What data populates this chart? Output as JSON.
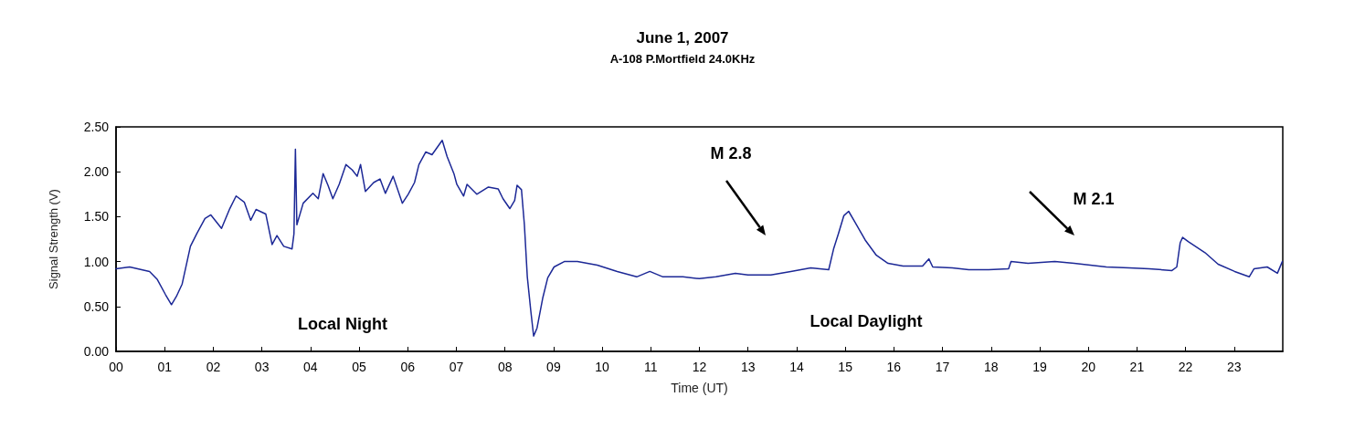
{
  "chart_data": {
    "type": "line",
    "title": "June 1, 2007",
    "subtitle": "A-108 P.Mortfield 24.0KHz",
    "xlabel": "Time (UT)",
    "ylabel": "Signal Strength (V)",
    "xlim": [
      0,
      24
    ],
    "ylim": [
      0,
      2.5
    ],
    "xticks": [
      {
        "value": 0,
        "label": "00"
      },
      {
        "value": 1,
        "label": "01"
      },
      {
        "value": 2,
        "label": "02"
      },
      {
        "value": 3,
        "label": "03"
      },
      {
        "value": 4,
        "label": "04"
      },
      {
        "value": 5,
        "label": "05"
      },
      {
        "value": 6,
        "label": "06"
      },
      {
        "value": 7,
        "label": "07"
      },
      {
        "value": 8,
        "label": "08"
      },
      {
        "value": 9,
        "label": "09"
      },
      {
        "value": 10,
        "label": "10"
      },
      {
        "value": 11,
        "label": "11"
      },
      {
        "value": 12,
        "label": "12"
      },
      {
        "value": 13,
        "label": "13"
      },
      {
        "value": 14,
        "label": "14"
      },
      {
        "value": 15,
        "label": "15"
      },
      {
        "value": 16,
        "label": "16"
      },
      {
        "value": 17,
        "label": "17"
      },
      {
        "value": 18,
        "label": "18"
      },
      {
        "value": 19,
        "label": "19"
      },
      {
        "value": 20,
        "label": "20"
      },
      {
        "value": 21,
        "label": "21"
      },
      {
        "value": 22,
        "label": "22"
      },
      {
        "value": 23,
        "label": "23"
      }
    ],
    "yticks": [
      {
        "value": 0,
        "label": "0.00"
      },
      {
        "value": 0.5,
        "label": "0.50"
      },
      {
        "value": 1,
        "label": "1.00"
      },
      {
        "value": 1.5,
        "label": "1.50"
      },
      {
        "value": 2,
        "label": "2.00"
      },
      {
        "value": 2.5,
        "label": "2.50"
      }
    ],
    "grid": false,
    "marker": "none",
    "line_style": "solid",
    "x": [
      0,
      0.28,
      0.69,
      0.85,
      1.02,
      1.14,
      1.24,
      1.36,
      1.53,
      1.66,
      1.83,
      1.95,
      2.17,
      2.34,
      2.47,
      2.64,
      2.77,
      2.88,
      3.08,
      3.21,
      3.31,
      3.45,
      3.62,
      3.66,
      3.69,
      3.72,
      3.85,
      4.05,
      4.16,
      4.26,
      4.36,
      4.46,
      4.59,
      4.73,
      4.86,
      4.96,
      5.03,
      5.13,
      5.3,
      5.43,
      5.54,
      5.7,
      5.89,
      6.01,
      6.14,
      6.23,
      6.37,
      6.5,
      6.71,
      6.81,
      6.95,
      7.01,
      7.15,
      7.22,
      7.42,
      7.66,
      7.86,
      7.96,
      8.1,
      8.2,
      8.25,
      8.34,
      8.4,
      8.46,
      8.53,
      8.59,
      8.66,
      8.78,
      8.88,
      9.01,
      9.22,
      9.49,
      9.9,
      10.31,
      10.71,
      10.98,
      11.25,
      11.66,
      12,
      12.34,
      12.74,
      13,
      13.47,
      13.88,
      14.29,
      14.66,
      14.76,
      14.86,
      14.97,
      15.07,
      15.2,
      15.41,
      15.64,
      15.88,
      16.19,
      16.59,
      16.72,
      16.8,
      17.2,
      17.54,
      17.95,
      18.36,
      18.41,
      18.76,
      19.31,
      19.71,
      20.37,
      20.84,
      21.25,
      21.72,
      21.82,
      21.89,
      21.94,
      22.06,
      22.4,
      22.67,
      23.01,
      23.31,
      23.41,
      23.68,
      23.89,
      23.99
    ],
    "series": [
      {
        "color": "#1c2896",
        "values": [
          0.92,
          0.94,
          0.89,
          0.8,
          0.63,
          0.52,
          0.61,
          0.75,
          1.17,
          1.31,
          1.48,
          1.52,
          1.37,
          1.59,
          1.73,
          1.66,
          1.46,
          1.58,
          1.53,
          1.19,
          1.29,
          1.17,
          1.14,
          1.31,
          2.25,
          1.41,
          1.65,
          1.76,
          1.7,
          1.98,
          1.85,
          1.7,
          1.86,
          2.08,
          2.02,
          1.95,
          2.08,
          1.78,
          1.88,
          1.92,
          1.76,
          1.95,
          1.65,
          1.75,
          1.88,
          2.08,
          2.22,
          2.19,
          2.35,
          2.17,
          1.98,
          1.86,
          1.73,
          1.86,
          1.75,
          1.83,
          1.81,
          1.7,
          1.59,
          1.68,
          1.85,
          1.8,
          1.41,
          0.83,
          0.46,
          0.17,
          0.26,
          0.6,
          0.82,
          0.94,
          1,
          1,
          0.96,
          0.89,
          0.83,
          0.89,
          0.83,
          0.83,
          0.81,
          0.83,
          0.87,
          0.85,
          0.85,
          0.89,
          0.93,
          0.91,
          1.14,
          1.31,
          1.51,
          1.56,
          1.44,
          1.24,
          1.07,
          0.98,
          0.95,
          0.95,
          1.03,
          0.94,
          0.93,
          0.91,
          0.91,
          0.92,
          1,
          0.98,
          1,
          0.98,
          0.94,
          0.93,
          0.92,
          0.9,
          0.94,
          1.21,
          1.27,
          1.22,
          1.1,
          0.97,
          0.89,
          0.83,
          0.92,
          0.94,
          0.87,
          1
        ]
      }
    ],
    "annotations": [
      "M 2.8",
      "M 2.1",
      "Local Night",
      "Local Daylight"
    ]
  }
}
